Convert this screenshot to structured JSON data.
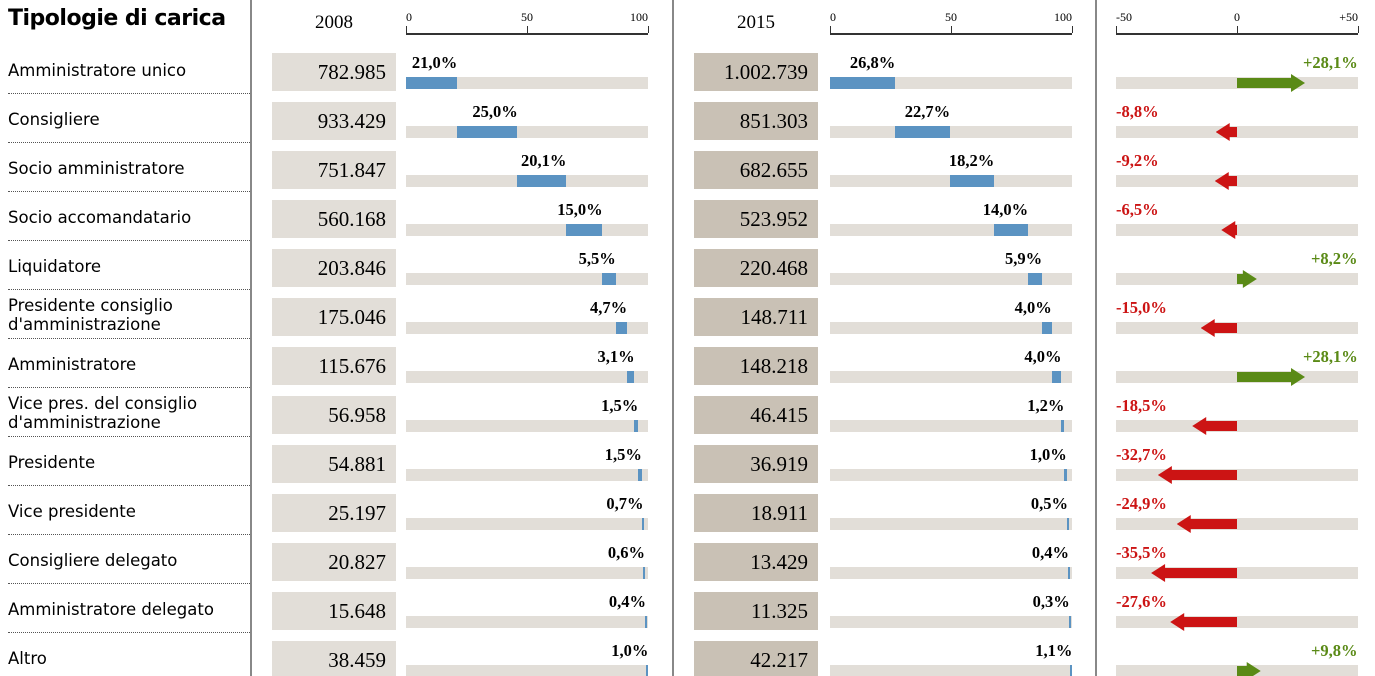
{
  "chart_data": {
    "type": "bar",
    "title": "Tipologie di carica",
    "categories": [
      "Amministratore unico",
      "Consigliere",
      "Socio amministratore",
      "Socio accomandatario",
      "Liquidatore",
      "Presidente consiglio d'amministrazione",
      "Amministratore",
      "Vice pres. del consiglio d'amministrazione",
      "Presidente",
      "Vice presidente",
      "Consigliere delegato",
      "Amministratore delegato",
      "Altro"
    ],
    "panels": [
      {
        "name": "2008",
        "counts": [
          "782.985",
          "933.429",
          "751.847",
          "560.168",
          "203.846",
          "175.046",
          "115.676",
          "56.958",
          "54.881",
          "25.197",
          "20.827",
          "15.648",
          "38.459"
        ],
        "values": [
          21.0,
          25.0,
          20.1,
          15.0,
          5.5,
          4.7,
          3.1,
          1.5,
          1.5,
          0.7,
          0.6,
          0.4,
          1.0
        ],
        "value_labels": [
          "21,0%",
          "25,0%",
          "20,1%",
          "15,0%",
          "5,5%",
          "4,7%",
          "3,1%",
          "1,5%",
          "1,5%",
          "0,7%",
          "0,6%",
          "0,4%",
          "1,0%"
        ],
        "xlim": [
          0,
          100
        ],
        "xticks": [
          0,
          50,
          100
        ],
        "color": "#5b93c2",
        "count_bg": "#e2ded8"
      },
      {
        "name": "2015",
        "counts": [
          "1.002.739",
          "851.303",
          "682.655",
          "523.952",
          "220.468",
          "148.711",
          "148.218",
          "46.415",
          "36.919",
          "18.911",
          "13.429",
          "11.325",
          "42.217"
        ],
        "values": [
          26.8,
          22.7,
          18.2,
          14.0,
          5.9,
          4.0,
          4.0,
          1.2,
          1.0,
          0.5,
          0.4,
          0.3,
          1.1
        ],
        "value_labels": [
          "26,8%",
          "22,7%",
          "18,2%",
          "14,0%",
          "5,9%",
          "4,0%",
          "4,0%",
          "1,2%",
          "1,0%",
          "0,5%",
          "0,4%",
          "0,3%",
          "1,1%"
        ],
        "xlim": [
          0,
          100
        ],
        "xticks": [
          0,
          50,
          100
        ],
        "color": "#5b93c2",
        "count_bg": "#c9c1b5"
      }
    ],
    "change": {
      "values": [
        28.1,
        -8.8,
        -9.2,
        -6.5,
        8.2,
        -15.0,
        28.1,
        -18.5,
        -32.7,
        -24.9,
        -35.5,
        -27.6,
        9.8
      ],
      "value_labels": [
        "+28,1%",
        "-8,8%",
        "-9,2%",
        "-6,5%",
        "+8,2%",
        "-15,0%",
        "+28,1%",
        "-18,5%",
        "-32,7%",
        "-24,9%",
        "-35,5%",
        "-27,6%",
        "+9,8%"
      ],
      "xlim": [
        -50,
        50
      ],
      "xticks": [
        -50,
        0,
        {
          "value": 50,
          "label": "+50"
        }
      ],
      "positive_color": "#5a8a16",
      "negative_color": "#cc1414"
    }
  }
}
